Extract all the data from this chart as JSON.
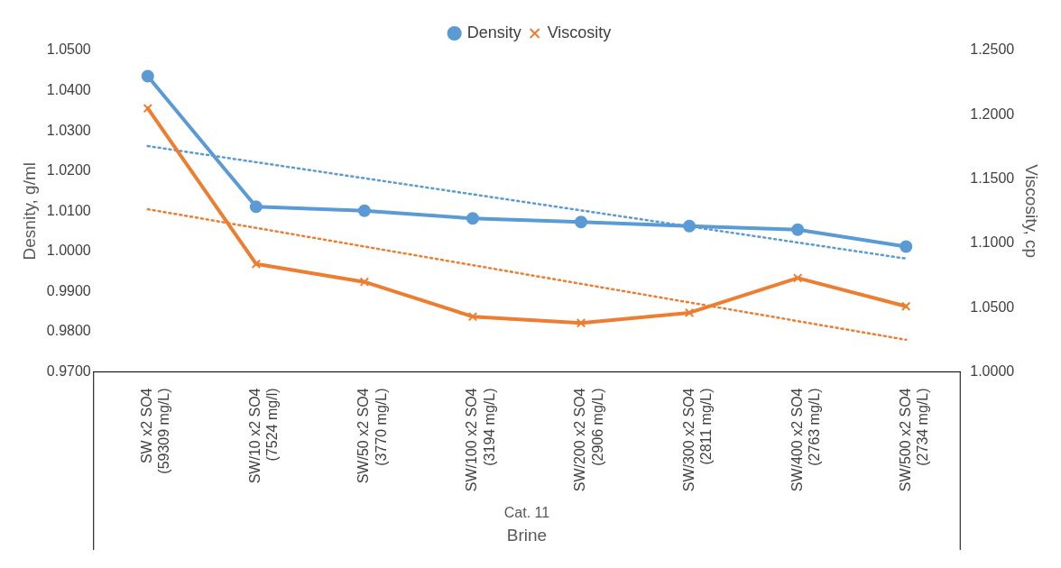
{
  "chart_data": {
    "type": "line",
    "xlabel": "Brine",
    "ylabel": "Desnity, g/ml",
    "y2label": "Viscosity, cp",
    "categories": [
      "SW x2 SO4\n(59309 mg/L)",
      "SW/10 x2 SO4\n(7524 mg/l)",
      "SW/50 x2 SO4\n(3770 mg/L)",
      "SW/100 x2 SO4\n(3194 mg/L)",
      "SW/200 x2 SO4\n(2906 mg/L)",
      "SW/300 x2 SO4\n(2811 mg/L)",
      "SW/400 x2 SO4\n(2763 mg/L)",
      "SW/500 x2 SO4\n(2734 mg/L)"
    ],
    "series": [
      {
        "name": "Density",
        "color": "#5b9bd5",
        "marker": "circle",
        "values": [
          1.0436,
          1.0111,
          1.0101,
          1.0082,
          1.0073,
          1.0063,
          1.0054,
          1.0012
        ]
      },
      {
        "name": "Viscosity",
        "color": "#ed7d31",
        "marker": "cross",
        "axis": "y2",
        "values": [
          1.205,
          1.084,
          1.07,
          1.043,
          1.038,
          1.046,
          1.073,
          1.051
        ]
      },
      {
        "color": "#5b9bd5",
        "marker": "none",
        "line_style": "dotted",
        "values": [
          1.0262,
          null,
          null,
          null,
          null,
          null,
          null,
          0.9982
        ]
      },
      {
        "color": "#ed7d31",
        "marker": "none",
        "line_style": "dotted",
        "axis": "y2",
        "values": [
          1.1265,
          null,
          null,
          null,
          null,
          null,
          null,
          1.025
        ]
      }
    ],
    "ylim": [
      0.97,
      1.05
    ],
    "yticks": [
      {
        "value": 0.97,
        "label": "0.9700"
      },
      {
        "value": 0.98,
        "label": "0.9800"
      },
      {
        "value": 0.99,
        "label": "0.9900"
      },
      {
        "value": 1.0,
        "label": "1.0000"
      },
      {
        "value": 1.01,
        "label": "1.0100"
      },
      {
        "value": 1.02,
        "label": "1.0200"
      },
      {
        "value": 1.03,
        "label": "1.0300"
      },
      {
        "value": 1.04,
        "label": "1.0400"
      },
      {
        "value": 1.05,
        "label": "1.0500"
      }
    ],
    "y2lim": [
      1.0,
      1.25
    ],
    "y2ticks": [
      {
        "value": 1.0,
        "label": "1.0000"
      },
      {
        "value": 1.05,
        "label": "1.0500"
      },
      {
        "value": 1.1,
        "label": "1.1000"
      },
      {
        "value": 1.15,
        "label": "1.1500"
      },
      {
        "value": 1.2,
        "label": "1.2000"
      },
      {
        "value": 1.25,
        "label": "1.2500"
      }
    ],
    "annotations": [
      "Cat. 11"
    ],
    "legend": "top",
    "grid": false
  }
}
